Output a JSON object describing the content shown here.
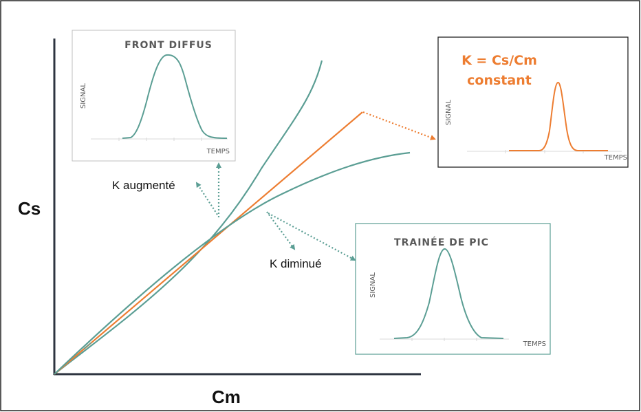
{
  "axes": {
    "y_label": "Cs",
    "x_label": "Cm"
  },
  "annotations": {
    "k_increased": "K augmenté",
    "k_decreased": "K diminué"
  },
  "insets": {
    "front_diffus": {
      "title": "FRONT DIFFUS",
      "y_label": "SIGNAL",
      "x_label": "TEMPS"
    },
    "constant": {
      "title_line1": "K = Cs/Cm",
      "title_line2": "constant",
      "y_label": "SIGNAL",
      "x_label": "TEMPS"
    },
    "trainee": {
      "title": "TRAINÉE DE PIC",
      "y_label": "SIGNAL",
      "x_label": "TEMPS"
    }
  },
  "colors": {
    "teal": "#5B9E94",
    "orange": "#ED7D31",
    "axis": "#2E3440",
    "frame": "#222222",
    "grid": "#D9D9D9"
  }
}
